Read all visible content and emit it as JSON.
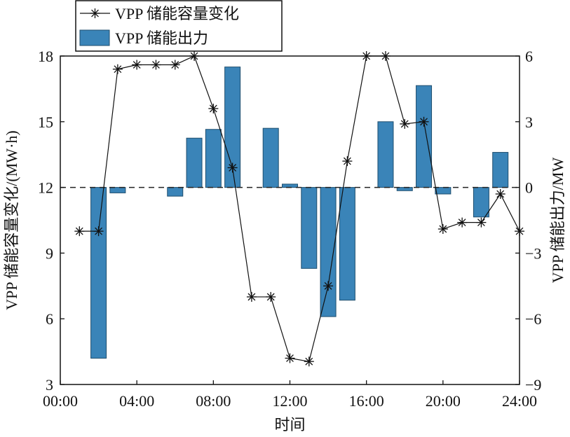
{
  "chart_data": {
    "type": "bar",
    "title": "",
    "xlabel": "时间",
    "ylabel_left": "VPP 储能容量变化/(MW·h)",
    "ylabel_right": "VPP 储能出力/MW",
    "x_ticks": [
      "00:00",
      "04:00",
      "08:00",
      "12:00",
      "16:00",
      "20:00",
      "24:00"
    ],
    "x_range_hours": [
      0,
      24
    ],
    "ylim_left": [
      3,
      18
    ],
    "yticks_left": [
      "3",
      "6",
      "9",
      "12",
      "15",
      "18"
    ],
    "ylim_right": [
      -9,
      6
    ],
    "yticks_right": [
      "−9",
      "−6",
      "−3",
      "0",
      "3",
      "6"
    ],
    "legend": {
      "position": "top-left",
      "items": [
        "VPP 储能容量变化",
        "VPP 储能出力"
      ]
    },
    "zero_reference_line": "dashed",
    "series": [
      {
        "name": "VPP 储能出力",
        "kind": "bar",
        "axis": "right",
        "color": "#3a84b8",
        "x_hours": [
          2,
          3,
          6,
          7,
          8,
          9,
          11,
          12,
          13,
          14,
          15,
          17,
          18,
          19,
          20,
          22,
          23
        ],
        "values": [
          -7.8,
          -0.25,
          -0.4,
          2.25,
          2.65,
          5.5,
          2.7,
          0.15,
          -3.7,
          -5.9,
          -5.15,
          3.0,
          -0.15,
          4.65,
          -0.3,
          -1.35,
          1.6
        ]
      },
      {
        "name": "VPP 储能容量变化",
        "kind": "line",
        "axis": "left",
        "color": "#111111",
        "marker": "asterisk",
        "x_hours": [
          1,
          2,
          3,
          4,
          5,
          6,
          7,
          8,
          9,
          10,
          11,
          12,
          13,
          14,
          15,
          16,
          17,
          18,
          19,
          20,
          21,
          22,
          23,
          24
        ],
        "values": [
          10.0,
          10.0,
          17.4,
          17.6,
          17.6,
          17.6,
          18.0,
          15.6,
          12.9,
          7.0,
          7.0,
          4.2,
          4.05,
          7.5,
          13.2,
          18.0,
          18.0,
          14.9,
          15.0,
          10.1,
          10.4,
          10.4,
          11.7,
          10.0
        ]
      }
    ]
  }
}
